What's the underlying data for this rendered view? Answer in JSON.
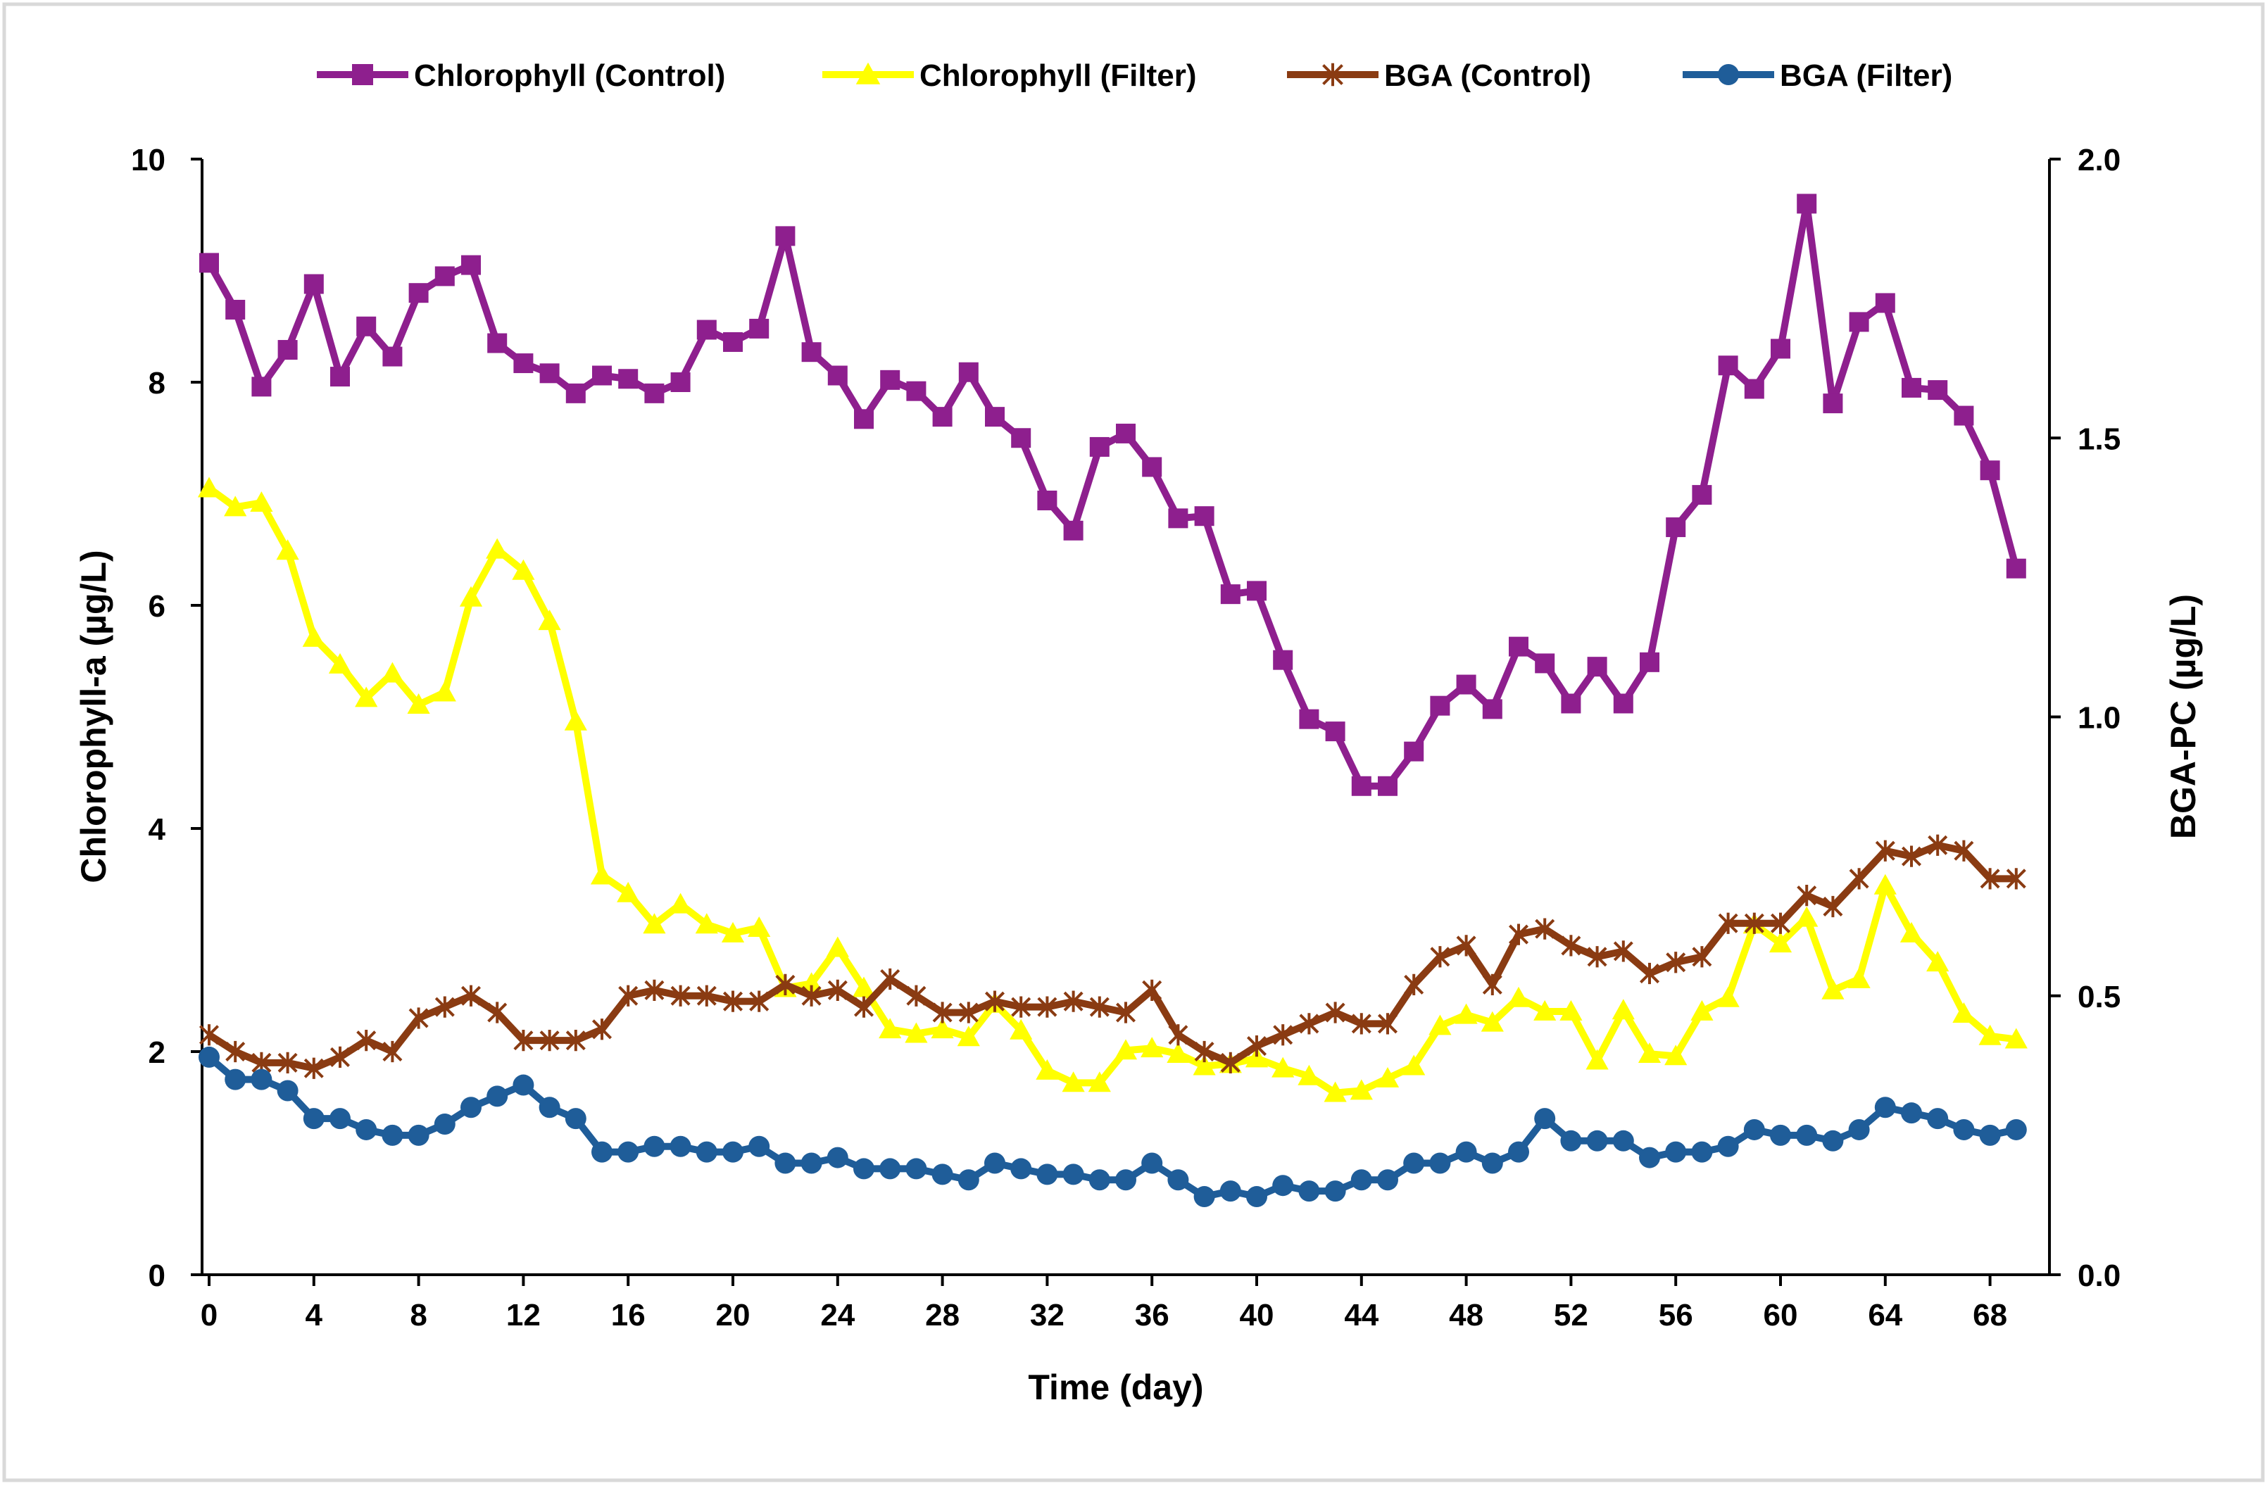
{
  "chart_data": {
    "type": "line",
    "title": "",
    "xlabel": "Time (day)",
    "ylabel": "Chlorophyll-a (µg/L)",
    "y2label": "BGA-PC (µg/L)",
    "xlim": [
      0,
      70
    ],
    "ylim": [
      0,
      10
    ],
    "y2lim": [
      0,
      2
    ],
    "xticks": [
      "0",
      "4",
      "8",
      "12",
      "16",
      "20",
      "24",
      "28",
      "32",
      "36",
      "40",
      "44",
      "48",
      "52",
      "56",
      "60",
      "64",
      "68"
    ],
    "yticks": [
      "0",
      "2",
      "4",
      "6",
      "8",
      "10"
    ],
    "y2ticks": [
      "0.0",
      "0.5",
      "1.0",
      "1.5",
      "2.0"
    ],
    "grid": false,
    "legend_position": "top",
    "x": [
      0,
      1,
      2,
      3,
      4,
      5,
      6,
      7,
      8,
      9,
      10,
      11,
      12,
      13,
      14,
      15,
      16,
      17,
      18,
      19,
      20,
      21,
      22,
      23,
      24,
      25,
      26,
      27,
      28,
      29,
      30,
      31,
      32,
      33,
      34,
      35,
      36,
      37,
      38,
      39,
      40,
      41,
      42,
      43,
      44,
      45,
      46,
      47,
      48,
      49,
      50,
      51,
      52,
      53,
      54,
      55,
      56,
      57,
      58,
      59,
      60,
      61,
      62,
      63,
      64,
      65,
      66,
      67,
      68,
      69
    ],
    "series": [
      {
        "name": "Chlorophyll (Control)",
        "axis": "left",
        "color": "#8e1f8e",
        "marker": "square",
        "values": [
          9.07,
          8.65,
          7.96,
          8.29,
          8.88,
          8.05,
          8.5,
          8.23,
          8.8,
          8.95,
          9.05,
          8.35,
          8.17,
          8.08,
          7.9,
          8.06,
          8.03,
          7.9,
          8.0,
          8.47,
          8.36,
          8.48,
          9.31,
          8.27,
          8.06,
          7.67,
          8.02,
          7.92,
          7.69,
          8.09,
          7.69,
          7.5,
          6.94,
          6.67,
          7.42,
          7.54,
          7.24,
          6.78,
          6.8,
          6.1,
          6.13,
          5.51,
          4.98,
          4.87,
          4.38,
          4.38,
          4.69,
          5.1,
          5.29,
          5.07,
          5.63,
          5.48,
          5.12,
          5.45,
          5.12,
          5.49,
          6.7,
          6.99,
          8.15,
          7.94,
          8.3,
          9.6,
          7.81,
          8.54,
          8.71,
          7.95,
          7.93,
          7.7,
          7.21,
          6.33
        ]
      },
      {
        "name": "Chlorophyll (Filter)",
        "axis": "left",
        "color": "#ffff00",
        "marker": "triangle",
        "values": [
          7.05,
          6.88,
          6.92,
          6.49,
          5.71,
          5.47,
          5.17,
          5.39,
          5.11,
          5.22,
          6.07,
          6.5,
          6.31,
          5.86,
          4.96,
          3.58,
          3.42,
          3.14,
          3.32,
          3.14,
          3.06,
          3.11,
          2.57,
          2.61,
          2.93,
          2.57,
          2.2,
          2.16,
          2.2,
          2.13,
          2.43,
          2.19,
          1.83,
          1.72,
          1.72,
          2.01,
          2.03,
          1.98,
          1.87,
          1.89,
          1.94,
          1.85,
          1.78,
          1.63,
          1.65,
          1.76,
          1.87,
          2.23,
          2.33,
          2.26,
          2.48,
          2.36,
          2.36,
          1.92,
          2.37,
          1.98,
          1.96,
          2.36,
          2.48,
          3.14,
          2.97,
          3.2,
          2.55,
          2.65,
          3.49,
          3.06,
          2.8,
          2.34,
          2.14,
          2.11
        ]
      },
      {
        "name": "BGA (Control)",
        "axis": "right",
        "color": "#8a3b12",
        "marker": "star",
        "values": [
          0.43,
          0.4,
          0.38,
          0.38,
          0.37,
          0.39,
          0.42,
          0.4,
          0.46,
          0.48,
          0.5,
          0.47,
          0.42,
          0.42,
          0.42,
          0.44,
          0.5,
          0.51,
          0.5,
          0.5,
          0.49,
          0.49,
          0.52,
          0.5,
          0.51,
          0.48,
          0.53,
          0.5,
          0.47,
          0.47,
          0.49,
          0.48,
          0.48,
          0.49,
          0.48,
          0.47,
          0.51,
          0.43,
          0.4,
          0.38,
          0.41,
          0.43,
          0.45,
          0.47,
          0.45,
          0.45,
          0.52,
          0.57,
          0.59,
          0.52,
          0.61,
          0.62,
          0.59,
          0.57,
          0.58,
          0.54,
          0.56,
          0.57,
          0.63,
          0.63,
          0.63,
          0.68,
          0.66,
          0.71,
          0.76,
          0.75,
          0.77,
          0.76,
          0.71,
          0.71
        ]
      },
      {
        "name": "BGA (Filter)",
        "axis": "right",
        "color": "#1f5d99",
        "marker": "circle",
        "values": [
          0.39,
          0.35,
          0.35,
          0.33,
          0.28,
          0.28,
          0.26,
          0.25,
          0.25,
          0.27,
          0.3,
          0.32,
          0.34,
          0.3,
          0.28,
          0.22,
          0.22,
          0.23,
          0.23,
          0.22,
          0.22,
          0.23,
          0.2,
          0.2,
          0.21,
          0.19,
          0.19,
          0.19,
          0.18,
          0.17,
          0.2,
          0.19,
          0.18,
          0.18,
          0.17,
          0.17,
          0.2,
          0.17,
          0.14,
          0.15,
          0.14,
          0.16,
          0.15,
          0.15,
          0.17,
          0.17,
          0.2,
          0.2,
          0.22,
          0.2,
          0.22,
          0.28,
          0.24,
          0.24,
          0.24,
          0.21,
          0.22,
          0.22,
          0.23,
          0.26,
          0.25,
          0.25,
          0.24,
          0.26,
          0.3,
          0.29,
          0.28,
          0.26,
          0.25,
          0.26
        ]
      }
    ]
  }
}
